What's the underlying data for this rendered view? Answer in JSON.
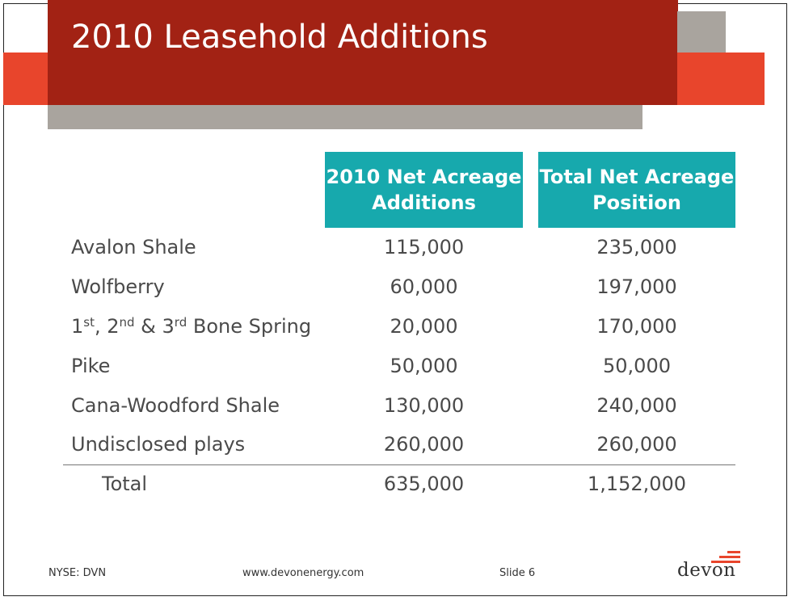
{
  "slide": {
    "title": "2010 Leasehold Additions"
  },
  "table": {
    "headers": [
      "2010 Net Acreage Additions",
      "Total Net Acreage Position"
    ],
    "rows": [
      {
        "label": "Avalon Shale",
        "additions": "115,000",
        "position": "235,000"
      },
      {
        "label": "Wolfberry",
        "additions": "60,000",
        "position": "197,000"
      },
      {
        "label": "1st, 2nd & 3rd Bone Spring",
        "label_parts": [
          "1",
          "st",
          ", 2",
          "nd",
          " & 3",
          "rd",
          " Bone Spring"
        ],
        "additions": "20,000",
        "position": "170,000"
      },
      {
        "label": "Pike",
        "additions": "50,000",
        "position": "50,000"
      },
      {
        "label": "Cana-Woodford Shale",
        "additions": "130,000",
        "position": "240,000"
      },
      {
        "label": "Undisclosed plays",
        "additions": "260,000",
        "position": "260,000"
      }
    ],
    "total": {
      "label": "Total",
      "additions": "635,000",
      "position": "1,152,000"
    }
  },
  "footer": {
    "ticker": "NYSE: DVN",
    "url": "www.devonenergy.com",
    "slide_number": "Slide 6",
    "logo_text": "devon"
  },
  "colors": {
    "title_bar": "#a22214",
    "accent_orange": "#e8452c",
    "accent_gray": "#a9a49e",
    "header_teal": "#17a9ad"
  }
}
